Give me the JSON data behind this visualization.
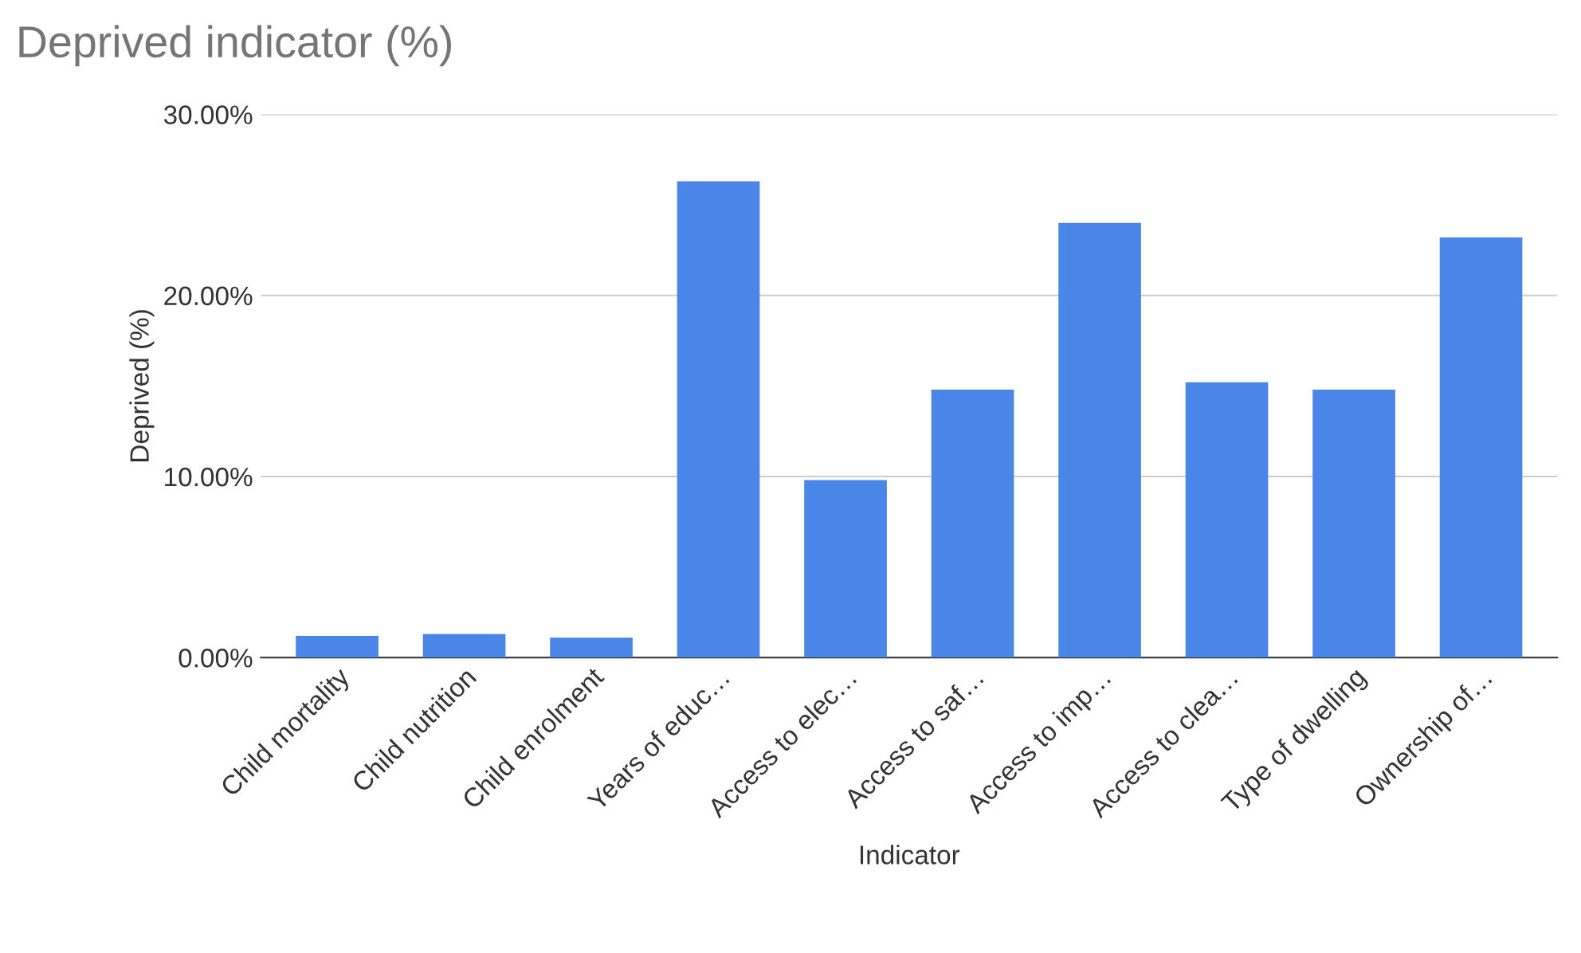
{
  "chart_data": {
    "type": "bar",
    "title": "Deprived indicator (%)",
    "xlabel": "Indicator",
    "ylabel": "Deprived (%)",
    "categories": [
      "Child mortality",
      "Child nutrition",
      "Child enrolment",
      "Years of educ…",
      "Access to elec…",
      "Access to saf…",
      "Access to imp…",
      "Access to clea…",
      "Type of dwelling",
      "Ownership of…"
    ],
    "values": [
      1.2,
      1.3,
      1.1,
      26.3,
      9.8,
      14.8,
      24.0,
      15.2,
      14.8,
      23.2
    ],
    "color": "#4a86e8",
    "ylim": [
      0,
      30
    ],
    "yticks": [
      {
        "value": 0,
        "label": "0.00%"
      },
      {
        "value": 10,
        "label": "10.00%"
      },
      {
        "value": 20,
        "label": "20.00%"
      },
      {
        "value": 30,
        "label": "30.00%"
      }
    ],
    "grid": "y",
    "legend": false
  }
}
